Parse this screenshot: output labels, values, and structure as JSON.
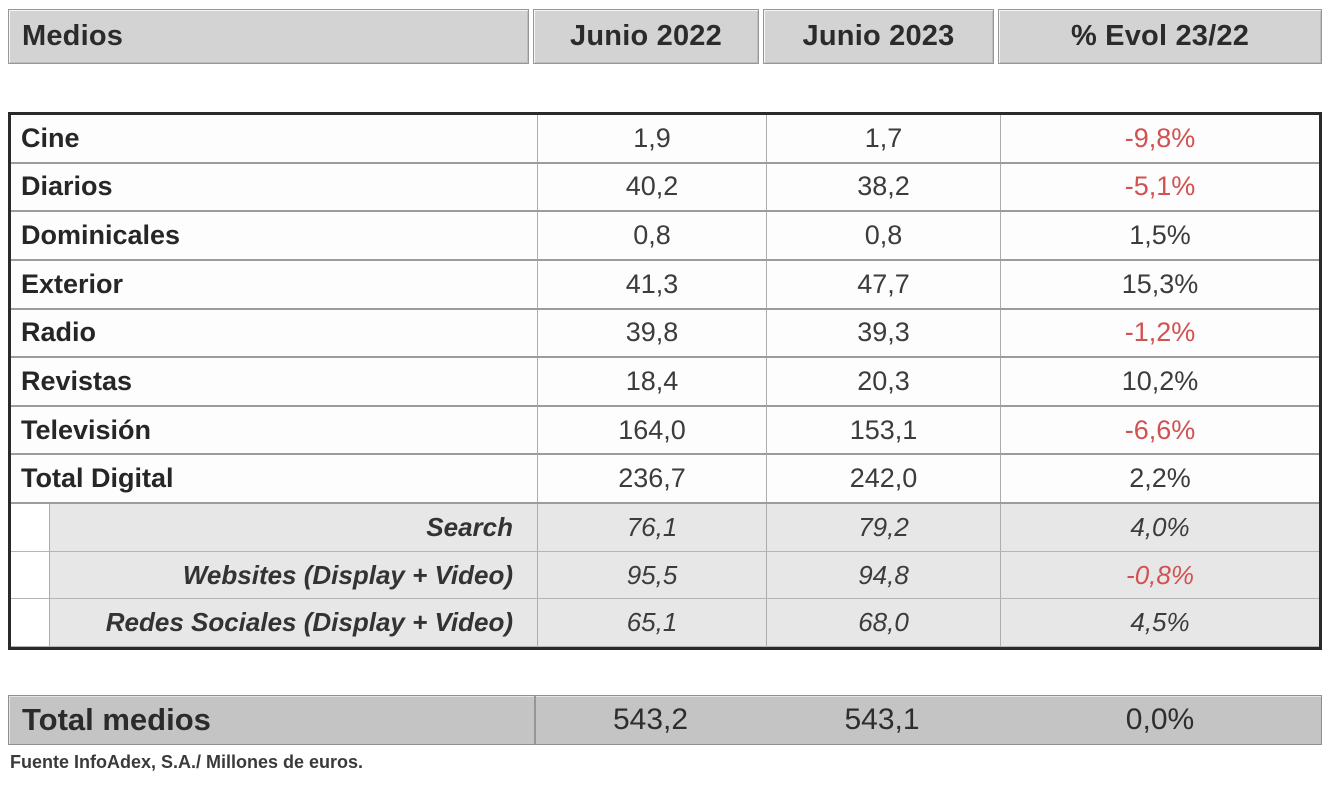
{
  "header": {
    "columns": [
      "Medios",
      "Junio 2022",
      "Junio 2023",
      "% Evol 23/22"
    ]
  },
  "rows": [
    {
      "label": "Cine",
      "junio_2022": "1,9",
      "junio_2023": "1,7",
      "evol": "-9,8%"
    },
    {
      "label": "Diarios",
      "junio_2022": "40,2",
      "junio_2023": "38,2",
      "evol": "-5,1%"
    },
    {
      "label": "Dominicales",
      "junio_2022": "0,8",
      "junio_2023": "0,8",
      "evol": "1,5%"
    },
    {
      "label": "Exterior",
      "junio_2022": "41,3",
      "junio_2023": "47,7",
      "evol": "15,3%"
    },
    {
      "label": "Radio",
      "junio_2022": "39,8",
      "junio_2023": "39,3",
      "evol": "-1,2%"
    },
    {
      "label": "Revistas",
      "junio_2022": "18,4",
      "junio_2023": "20,3",
      "evol": "10,2%"
    },
    {
      "label": "Televisión",
      "junio_2022": "164,0",
      "junio_2023": "153,1",
      "evol": "-6,6%"
    },
    {
      "label": "Total Digital",
      "junio_2022": "236,7",
      "junio_2023": "242,0",
      "evol": "2,2%"
    },
    {
      "label": "Search",
      "junio_2022": "76,1",
      "junio_2023": "79,2",
      "evol": "4,0%"
    },
    {
      "label": "Websites (Display + Video)",
      "junio_2022": "95,5",
      "junio_2023": "94,8",
      "evol": "-0,8%"
    },
    {
      "label": "Redes Sociales (Display + Video)",
      "junio_2022": "65,1",
      "junio_2023": "68,0",
      "evol": "4,5%"
    }
  ],
  "total": {
    "label": "Total medios",
    "junio_2022": "543,2",
    "junio_2023": "543,1",
    "evol": "0,0%"
  },
  "footnote": "Fuente InfoAdex, S.A./ Millones de euros.",
  "colors": {
    "negative_evol": "#d25151",
    "positive_evol": "#3c3c3c",
    "header_bg": "#d3d3d3",
    "subrow_bg": "#e7e7e7",
    "total_bg": "#c4c4c4",
    "table_border": "#2a2a2a"
  },
  "chart_data": {
    "type": "table",
    "columns": [
      "Medios",
      "Junio 2022",
      "Junio 2023",
      "% Evol 23/22"
    ],
    "units": "Millones de euros",
    "source": "InfoAdex, S.A.",
    "rows": [
      [
        "Cine",
        1.9,
        1.7,
        -9.8
      ],
      [
        "Diarios",
        40.2,
        38.2,
        -5.1
      ],
      [
        "Dominicales",
        0.8,
        0.8,
        1.5
      ],
      [
        "Exterior",
        41.3,
        47.7,
        15.3
      ],
      [
        "Radio",
        39.8,
        39.3,
        -1.2
      ],
      [
        "Revistas",
        18.4,
        20.3,
        10.2
      ],
      [
        "Televisión",
        164.0,
        153.1,
        -6.6
      ],
      [
        "Total Digital",
        236.7,
        242.0,
        2.2
      ],
      [
        "Search",
        76.1,
        79.2,
        4.0
      ],
      [
        "Websites (Display + Video)",
        95.5,
        94.8,
        -0.8
      ],
      [
        "Redes Sociales (Display + Video)",
        65.1,
        68.0,
        4.5
      ]
    ],
    "total_row": [
      "Total medios",
      543.2,
      543.1,
      0.0
    ],
    "digital_subrows": [
      "Search",
      "Websites (Display + Video)",
      "Redes Sociales (Display + Video)"
    ]
  }
}
